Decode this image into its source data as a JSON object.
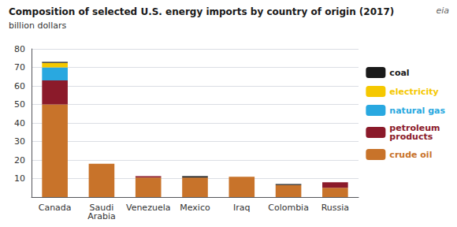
{
  "chart_data": {
    "type": "bar",
    "title": "Composition of selected U.S. energy imports by country of origin (2017)",
    "subtitle": "billion dollars",
    "categories": [
      "Canada",
      "Saudi\nArabia",
      "Venezuela",
      "Mexico",
      "Iraq",
      "Colombia",
      "Russia"
    ],
    "series": [
      {
        "name": "crude oil",
        "color": "#C8732A",
        "values": [
          50.0,
          18.0,
          10.5,
          10.5,
          11.0,
          6.5,
          5.0
        ]
      },
      {
        "name": "petroleum\nproducts",
        "color": "#8B1A2A",
        "values": [
          13.0,
          0.0,
          0.8,
          0.0,
          0.0,
          0.0,
          3.0
        ]
      },
      {
        "name": "natural gas",
        "color": "#29A8E0",
        "values": [
          7.0,
          0.0,
          0.0,
          0.0,
          0.0,
          0.0,
          0.0
        ]
      },
      {
        "name": "electricity",
        "color": "#F5C800",
        "values": [
          2.5,
          0.0,
          0.0,
          0.0,
          0.0,
          0.0,
          0.0
        ]
      },
      {
        "name": "coal",
        "color": "#1a1a1a",
        "values": [
          0.5,
          0.0,
          0.0,
          0.8,
          0.0,
          0.5,
          0.0
        ]
      }
    ],
    "stacked": true,
    "ylim": [
      0,
      80
    ],
    "yticks": [
      10,
      20,
      30,
      40,
      50,
      60,
      70,
      80
    ],
    "grid": true,
    "legend": "right",
    "annotations": [
      "eia"
    ]
  }
}
